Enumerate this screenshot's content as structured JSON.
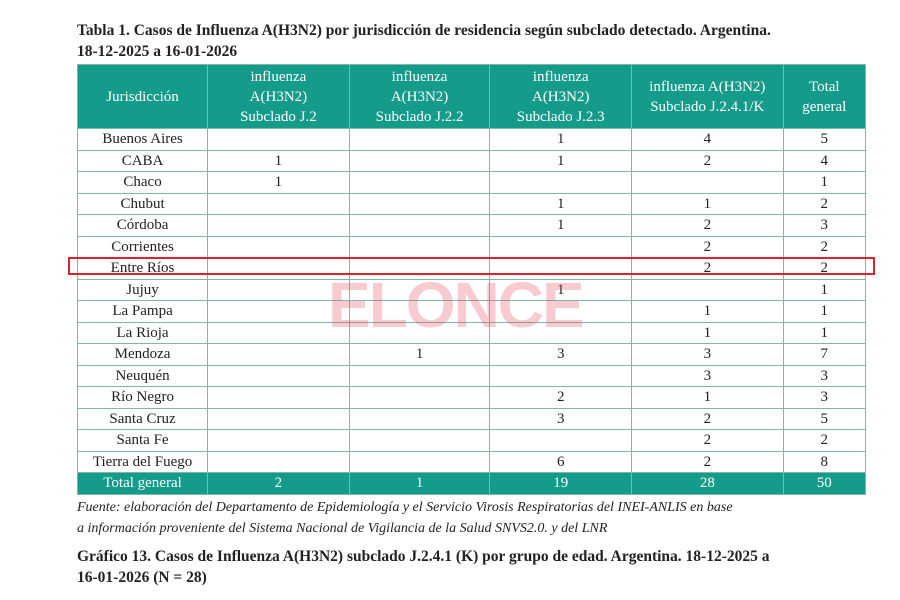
{
  "table_caption": "Tabla 1. Casos de Influenza A(H3N2) por jurisdicción de residencia según subclado detectado. Argentina.\n18-12-2025 a 16-01-2026",
  "table": {
    "header": [
      "Jurisdicción",
      "influenza\nA(H3N2)\nSubclado J.2",
      "influenza\nA(H3N2)\nSubclado J.2.2",
      "influenza\nA(H3N2)\nSubclado J.2.3",
      "influenza A(H3N2)\nSubclado J.2.4.1/K",
      "Total\ngeneral"
    ],
    "rows": [
      [
        "Buenos Aires",
        null,
        null,
        1,
        4,
        5
      ],
      [
        "CABA",
        1,
        null,
        1,
        2,
        4
      ],
      [
        "Chaco",
        1,
        null,
        null,
        null,
        1
      ],
      [
        "Chubut",
        null,
        null,
        1,
        1,
        2
      ],
      [
        "Córdoba",
        null,
        null,
        1,
        2,
        3
      ],
      [
        "Corrientes",
        null,
        null,
        null,
        2,
        2
      ],
      [
        "Entre Ríos",
        null,
        null,
        null,
        2,
        2
      ],
      [
        "Jujuy",
        null,
        null,
        1,
        null,
        1
      ],
      [
        "La Pampa",
        null,
        null,
        null,
        1,
        1
      ],
      [
        "La Rioja",
        null,
        null,
        null,
        1,
        1
      ],
      [
        "Mendoza",
        null,
        1,
        3,
        3,
        7
      ],
      [
        "Neuquén",
        null,
        null,
        null,
        3,
        3
      ],
      [
        "Río Negro",
        null,
        null,
        2,
        1,
        3
      ],
      [
        "Santa Cruz",
        null,
        null,
        3,
        2,
        5
      ],
      [
        "Santa Fe",
        null,
        null,
        null,
        2,
        2
      ],
      [
        "Tierra del Fuego",
        null,
        null,
        6,
        2,
        8
      ]
    ],
    "total": [
      "Total general",
      2,
      1,
      19,
      28,
      50
    ]
  },
  "source_note": "Fuente: elaboración del Departamento de Epidemiología y el Servicio Virosis Respiratorias del INEI-ANLIS en base\na información proveniente del Sistema Nacional de Vigilancia de la Salud SNVS2.0. y del LNR",
  "watermark": "ELONCE",
  "next_caption": "Gráfico 13. Casos de Influenza A(H3N2) subclado J.2.4.1 (K) por grupo de edad. Argentina. 18-12-2025 a\n16-01-2026 (N = 28)"
}
